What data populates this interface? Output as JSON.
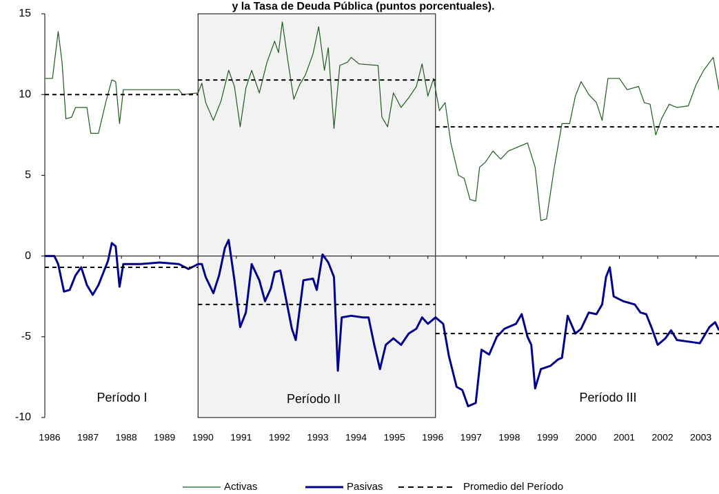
{
  "chart_data": {
    "type": "line",
    "title": "y la Tasa de Deuda Pública (puntos porcentuales).",
    "xlim": [
      1986,
      2003.6
    ],
    "xticks": [
      1986,
      1987,
      1988,
      1989,
      1990,
      1991,
      1992,
      1993,
      1994,
      1995,
      1996,
      1997,
      1998,
      1999,
      2000,
      2001,
      2002,
      2003
    ],
    "ylim": [
      -10,
      15
    ],
    "yticks": [
      15,
      10,
      5,
      0,
      -5,
      -10
    ],
    "shaded_period": [
      1990,
      1996.2
    ],
    "annotations": [
      "Período I",
      "Período II",
      "Período III"
    ],
    "series": [
      {
        "name": "Activas",
        "color": "#1e5a1e",
        "width": 1.2,
        "dashed": false,
        "x": [
          1986.0,
          1986.2,
          1986.35,
          1986.45,
          1986.55,
          1986.7,
          1986.8,
          1987.1,
          1987.2,
          1987.4,
          1987.6,
          1987.75,
          1987.85,
          1987.95,
          1988.05,
          1988.5,
          1989.0,
          1989.5,
          1989.6,
          1990.0,
          1990.1,
          1990.2,
          1990.4,
          1990.6,
          1990.8,
          1990.95,
          1991.1,
          1991.25,
          1991.4,
          1991.6,
          1991.8,
          1992.0,
          1992.1,
          1992.2,
          1992.35,
          1992.5,
          1992.65,
          1992.8,
          1993.0,
          1993.15,
          1993.3,
          1993.4,
          1993.55,
          1993.7,
          1993.9,
          1994.0,
          1994.2,
          1994.7,
          1994.8,
          1994.95,
          1995.1,
          1995.3,
          1995.5,
          1995.7,
          1995.85,
          1996.0,
          1996.15,
          1996.3,
          1996.45,
          1996.6,
          1996.8,
          1996.95,
          1997.1,
          1997.25,
          1997.35,
          1997.5,
          1997.7,
          1997.9,
          1998.1,
          1998.4,
          1998.6,
          1998.8,
          1998.95,
          1999.1,
          1999.3,
          1999.5,
          1999.7,
          1999.85,
          2000.0,
          2000.2,
          2000.4,
          2000.55,
          2000.7,
          2001.0,
          2001.2,
          2001.5,
          2001.65,
          2001.8,
          2001.95,
          2002.1,
          2002.3,
          2002.5,
          2002.8,
          2003.0,
          2003.2,
          2003.45,
          2003.6
        ],
        "values": [
          11,
          11,
          13.9,
          12,
          8.5,
          8.6,
          9.2,
          9.2,
          7.6,
          7.6,
          9.6,
          10.9,
          10.8,
          8.2,
          10.3,
          10.3,
          10.3,
          10.3,
          10,
          10.1,
          10.7,
          9.5,
          8.4,
          9.6,
          11.5,
          10.5,
          8,
          10.4,
          11.5,
          10.1,
          12,
          13.3,
          12.6,
          14.5,
          12,
          9.7,
          10.6,
          11.2,
          12.5,
          14.2,
          11.5,
          12.9,
          7.9,
          11.8,
          12,
          12.3,
          11.9,
          11.8,
          8.6,
          8,
          10.1,
          9.2,
          9.8,
          10.5,
          11.9,
          9.9,
          11,
          9,
          9.5,
          7,
          5,
          4.8,
          3.5,
          3.4,
          5.5,
          5.8,
          6.5,
          6,
          6.5,
          6.8,
          7,
          5.5,
          2.2,
          2.3,
          5.5,
          8.2,
          8.2,
          9.9,
          10.8,
          10,
          9.5,
          8.4,
          11,
          11,
          10.3,
          10.5,
          9.5,
          9.4,
          7.5,
          8.5,
          9.4,
          9.2,
          9.3,
          10.6,
          11.5,
          12.3,
          10.3
        ]
      },
      {
        "name": "Pasivas",
        "color": "#00008b",
        "width": 3,
        "dashed": false,
        "x": [
          1986.0,
          1986.25,
          1986.35,
          1986.5,
          1986.65,
          1986.8,
          1986.95,
          1987.1,
          1987.25,
          1987.4,
          1987.55,
          1987.65,
          1987.75,
          1987.85,
          1987.95,
          1988.05,
          1988.5,
          1989.0,
          1989.5,
          1989.75,
          1990.0,
          1990.1,
          1990.2,
          1990.4,
          1990.55,
          1990.7,
          1990.8,
          1990.95,
          1991.1,
          1991.25,
          1991.4,
          1991.6,
          1991.75,
          1991.9,
          1992.0,
          1992.15,
          1992.3,
          1992.45,
          1992.55,
          1992.75,
          1993.0,
          1993.1,
          1993.25,
          1993.4,
          1993.55,
          1993.65,
          1993.75,
          1994.0,
          1994.3,
          1994.45,
          1994.6,
          1994.75,
          1994.9,
          1995.1,
          1995.3,
          1995.5,
          1995.7,
          1995.85,
          1996.0,
          1996.2,
          1996.4,
          1996.55,
          1996.75,
          1996.9,
          1997.05,
          1997.25,
          1997.4,
          1997.6,
          1997.8,
          1998.0,
          1998.3,
          1998.45,
          1998.6,
          1998.7,
          1998.8,
          1998.95,
          1999.2,
          1999.4,
          1999.5,
          1999.65,
          1999.85,
          2000.0,
          2000.2,
          2000.4,
          2000.55,
          2000.65,
          2000.75,
          2000.85,
          2001.1,
          2001.4,
          2001.55,
          2001.7,
          2001.85,
          2002.0,
          2002.2,
          2002.35,
          2002.5,
          2002.8,
          2003.1,
          2003.35,
          2003.5,
          2003.6
        ],
        "values": [
          0,
          0,
          -0.5,
          -2.2,
          -2.1,
          -1.2,
          -0.7,
          -1.8,
          -2.4,
          -1.8,
          -0.9,
          -0.3,
          0.8,
          0.6,
          -1.9,
          -0.5,
          -0.5,
          -0.4,
          -0.5,
          -0.8,
          -0.5,
          -0.5,
          -1.3,
          -2.3,
          -1.2,
          0.5,
          1,
          -1.5,
          -4.4,
          -3.5,
          -0.5,
          -1.5,
          -2.8,
          -2,
          -1,
          -0.9,
          -2.7,
          -4.5,
          -5.2,
          -1.5,
          -1.4,
          -2.1,
          0.1,
          -0.4,
          -1.3,
          -7.1,
          -3.8,
          -3.7,
          -3.8,
          -3.8,
          -5.5,
          -7,
          -5.5,
          -5.1,
          -5.5,
          -4.8,
          -4.5,
          -3.8,
          -4.2,
          -3.8,
          -4.2,
          -6.2,
          -8.1,
          -8.3,
          -9.3,
          -9.1,
          -5.8,
          -6.1,
          -5,
          -4.5,
          -4.2,
          -3.6,
          -5,
          -5.5,
          -8.2,
          -7,
          -6.8,
          -6.4,
          -6.3,
          -3.7,
          -4.8,
          -4.5,
          -3.5,
          -3.6,
          -3,
          -1.3,
          -0.7,
          -2.5,
          -2.8,
          -3,
          -3.5,
          -3.6,
          -4.5,
          -5.5,
          -5.1,
          -4.6,
          -5.2,
          -5.3,
          -5.4,
          -4.4,
          -4.1,
          -4.6
        ]
      },
      {
        "name": "Promedio del Período",
        "color": "#000000",
        "width": 2,
        "dashed": true,
        "x": [
          1986,
          1990,
          1990,
          1990,
          1996.2,
          1996.2,
          1996.2,
          2003.6,
          2003.6,
          1986,
          1990,
          1990,
          1990,
          1996.2,
          1996.2,
          1996.2,
          2003.6
        ],
        "values": [
          10,
          10,
          null,
          10.9,
          10.9,
          null,
          8,
          8,
          null,
          -0.7,
          -0.7,
          null,
          -3,
          -3,
          null,
          -4.8,
          -4.8
        ]
      }
    ]
  }
}
